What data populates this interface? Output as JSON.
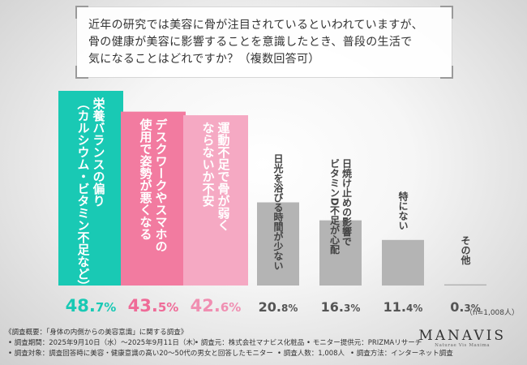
{
  "question": {
    "text": "近年の研究では美容に骨が注目されているといわれていますが、\n骨の健康が美容に影響することを意識したとき、普段の生活で\n気になることはどれですか？（複数回答可）"
  },
  "chart_data": {
    "type": "bar",
    "categories": [
      "栄養バランスの偏り\n（カルシウム・ビタミン不足など）",
      "デスクワークやスマホの\n使用で姿勢が悪くなる",
      "運動不足で骨が弱く\nならないか不安",
      "日光を浴びる時間が少ない",
      "日焼け止めの影響で\nビタミンD不足が心配",
      "特にない",
      "その他"
    ],
    "values": [
      48.7,
      43.5,
      42.6,
      20.8,
      16.3,
      11.4,
      0.3
    ],
    "value_labels": [
      {
        "main": "48.",
        "small": "7%"
      },
      {
        "main": "43.",
        "small": "5%"
      },
      {
        "main": "42.",
        "small": "6%"
      },
      {
        "main": "20.",
        "small": "8%"
      },
      {
        "main": "16.",
        "small": "3%"
      },
      {
        "main": "11.",
        "small": "4%"
      },
      {
        "main": "0.",
        "small": "3%"
      }
    ],
    "colors": [
      "#19c9b4",
      "#f27ba0",
      "#f5a9c3",
      "#b4b4b4",
      "#b4b4b4",
      "#b4b4b4",
      "#b4b4b4"
    ],
    "value_colors": [
      "#19c9b4",
      "#ef6b98",
      "#f08fb2",
      "#555555",
      "#555555",
      "#555555",
      "#555555"
    ],
    "label_inside": [
      true,
      true,
      true,
      false,
      false,
      false,
      false
    ],
    "sample_note": "（n=1,008人）"
  },
  "footer": {
    "line1": "《調査概要：「身体の内側からの美容意識」に関する調査》",
    "line2a": "• 調査期間：2025年9月10日（水）〜2025年9月11日（木）",
    "line2b": "• 調査元：株式会社マナビス化粧品",
    "line2c": "• モニター提供元：PRIZMAリサーチ",
    "line3a": "• 調査対象：調査回答時に美容・健康意識の高い20〜50代の男女と回答したモニター",
    "line3b": "• 調査人数：1,008人",
    "line3c": "• 調査方法：インターネット調査"
  },
  "logo": {
    "name": "MANAVIS",
    "tagline": "Naturae Vis Maxima"
  }
}
